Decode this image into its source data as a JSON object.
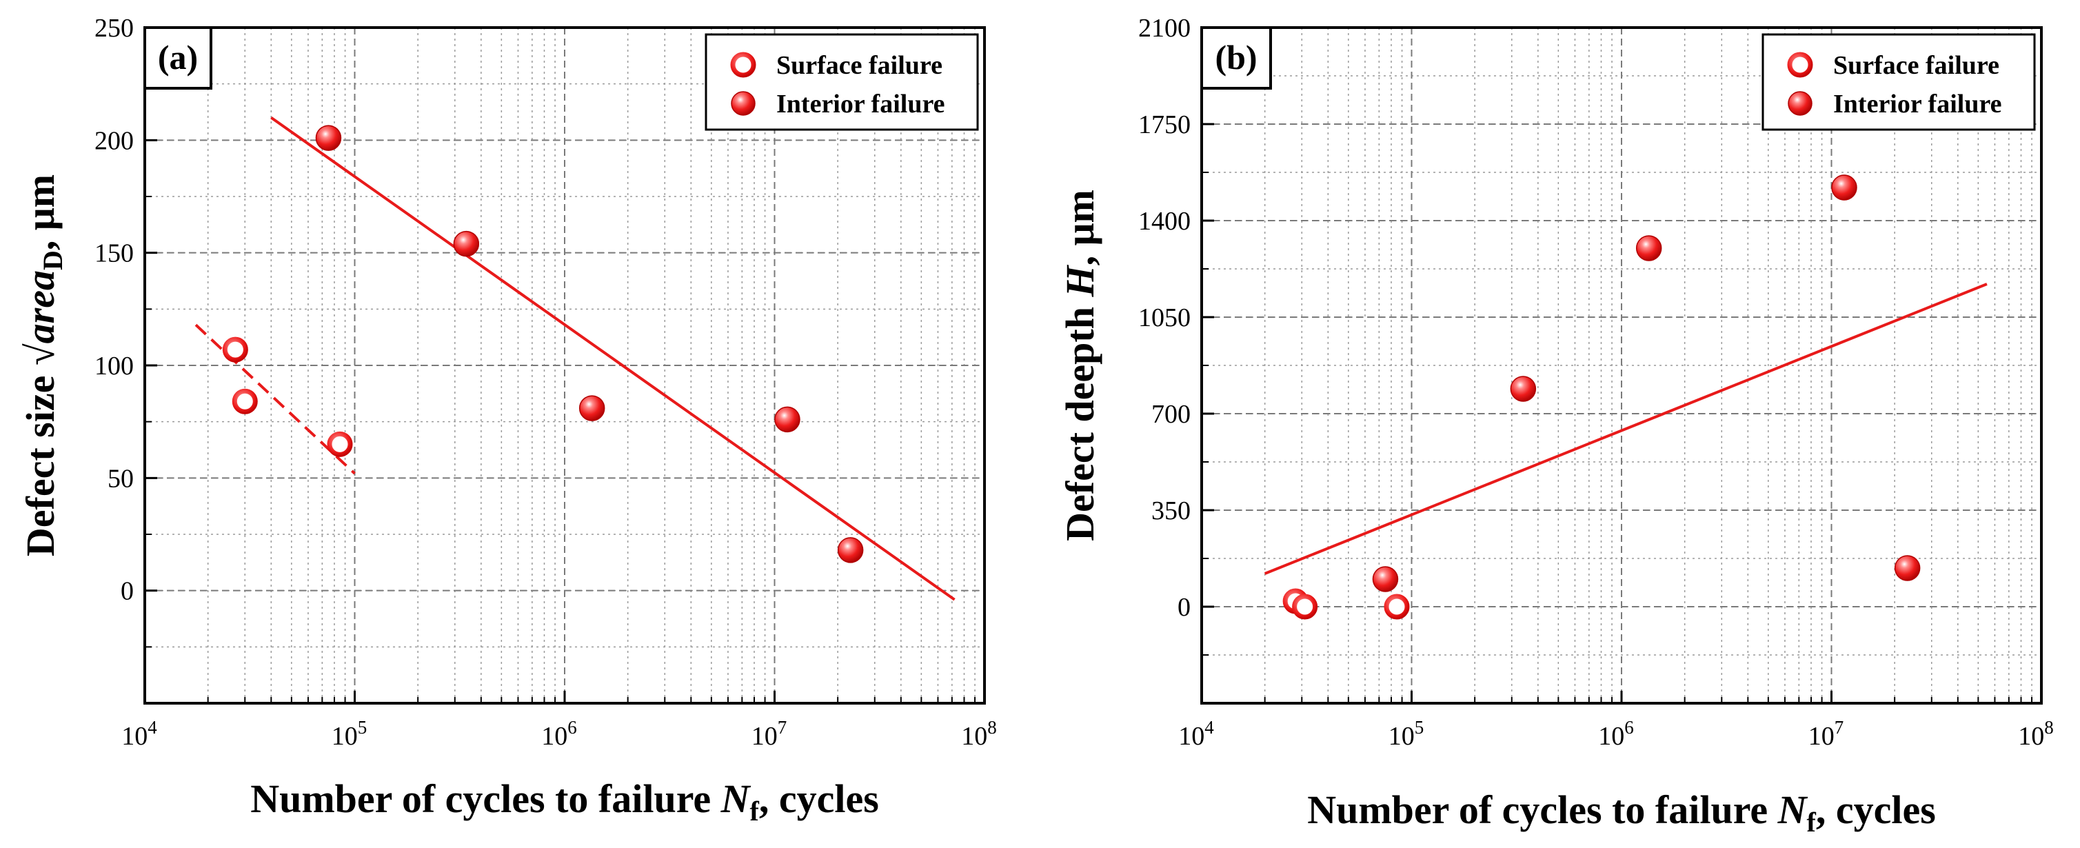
{
  "figure": {
    "panels": [
      "(a)",
      "(b)"
    ]
  },
  "chart_data": [
    {
      "id": "a",
      "type": "scatter",
      "label": "(a)",
      "xlabel": "Number of cycles to failure Nf, cycles",
      "xlabel_parts": [
        "Number of cycles to failure ",
        "N",
        "f",
        ", cycles"
      ],
      "ylabel": "Defect size √areaD, μm",
      "ylabel_parts": [
        "Defect size ",
        "√",
        "area",
        "D",
        ", μm"
      ],
      "x_scale": "log",
      "xlim": [
        10000,
        100000000
      ],
      "ylim": [
        -50,
        250
      ],
      "x_ticks": [
        {
          "value": 10000,
          "base": "10",
          "exp": "4"
        },
        {
          "value": 100000,
          "base": "10",
          "exp": "5"
        },
        {
          "value": 1000000,
          "base": "10",
          "exp": "6"
        },
        {
          "value": 10000000,
          "base": "10",
          "exp": "7"
        },
        {
          "value": 100000000,
          "base": "10",
          "exp": "8"
        }
      ],
      "y_ticks": [
        {
          "value": 0,
          "label": "0"
        },
        {
          "value": 50,
          "label": "50"
        },
        {
          "value": 100,
          "label": "100"
        },
        {
          "value": 150,
          "label": "150"
        },
        {
          "value": 200,
          "label": "200"
        },
        {
          "value": 250,
          "label": "250"
        }
      ],
      "grid": true,
      "legend_position": "top-right",
      "series": [
        {
          "name": "Surface failure",
          "marker": "hollow",
          "points": [
            {
              "x": 27000,
              "y": 107
            },
            {
              "x": 30000,
              "y": 84
            },
            {
              "x": 85000,
              "y": 65
            }
          ]
        },
        {
          "name": "Interior failure",
          "marker": "filled",
          "points": [
            {
              "x": 75000,
              "y": 201
            },
            {
              "x": 340000,
              "y": 154
            },
            {
              "x": 1350000,
              "y": 81
            },
            {
              "x": 11500000,
              "y": 76
            },
            {
              "x": 23000000,
              "y": 18
            }
          ]
        }
      ],
      "fit_lines": [
        {
          "name": "Surface failure fit",
          "style": "dashed",
          "points": [
            {
              "x": 17500,
              "y": 118
            },
            {
              "x": 100000,
              "y": 52
            }
          ]
        },
        {
          "name": "Interior failure fit",
          "style": "solid",
          "points": [
            {
              "x": 40000,
              "y": 210
            },
            {
              "x": 72000000,
              "y": -4
            }
          ]
        }
      ]
    },
    {
      "id": "b",
      "type": "scatter",
      "label": "(b)",
      "xlabel": "Number of cycles to failure Nf, cycles",
      "xlabel_parts": [
        "Number of cycles to failure ",
        "N",
        "f",
        ", cycles"
      ],
      "ylabel": "Defect deepth H, μm",
      "ylabel_parts": [
        "Defect deepth ",
        "H",
        ", μm"
      ],
      "x_scale": "log",
      "xlim": [
        10000,
        100000000
      ],
      "ylim": [
        -350,
        2100
      ],
      "x_ticks": [
        {
          "value": 10000,
          "base": "10",
          "exp": "4"
        },
        {
          "value": 100000,
          "base": "10",
          "exp": "5"
        },
        {
          "value": 1000000,
          "base": "10",
          "exp": "6"
        },
        {
          "value": 10000000,
          "base": "10",
          "exp": "7"
        },
        {
          "value": 100000000,
          "base": "10",
          "exp": "8"
        }
      ],
      "y_ticks": [
        {
          "value": 0,
          "label": "0"
        },
        {
          "value": 350,
          "label": "350"
        },
        {
          "value": 700,
          "label": "700"
        },
        {
          "value": 1050,
          "label": "1050"
        },
        {
          "value": 1400,
          "label": "1400"
        },
        {
          "value": 1750,
          "label": "1750"
        },
        {
          "value": 2100,
          "label": "2100"
        }
      ],
      "grid": true,
      "legend_position": "top-right",
      "series": [
        {
          "name": "Surface failure",
          "marker": "hollow",
          "points": [
            {
              "x": 28000,
              "y": 20
            },
            {
              "x": 31000,
              "y": 0
            },
            {
              "x": 85000,
              "y": 0
            }
          ]
        },
        {
          "name": "Interior failure",
          "marker": "filled",
          "points": [
            {
              "x": 75000,
              "y": 100
            },
            {
              "x": 340000,
              "y": 790
            },
            {
              "x": 1350000,
              "y": 1300
            },
            {
              "x": 11500000,
              "y": 1520
            },
            {
              "x": 23000000,
              "y": 140
            }
          ]
        }
      ],
      "fit_lines": [
        {
          "name": "Interior failure fit",
          "style": "solid",
          "points": [
            {
              "x": 20000,
              "y": 120
            },
            {
              "x": 55000000,
              "y": 1170
            }
          ]
        }
      ]
    }
  ],
  "colors": {
    "marker": "#ee1c1c",
    "marker_dark": "#b00000",
    "line": "#e81a1a",
    "grid": "#9a9a9a",
    "axis": "#000000"
  }
}
